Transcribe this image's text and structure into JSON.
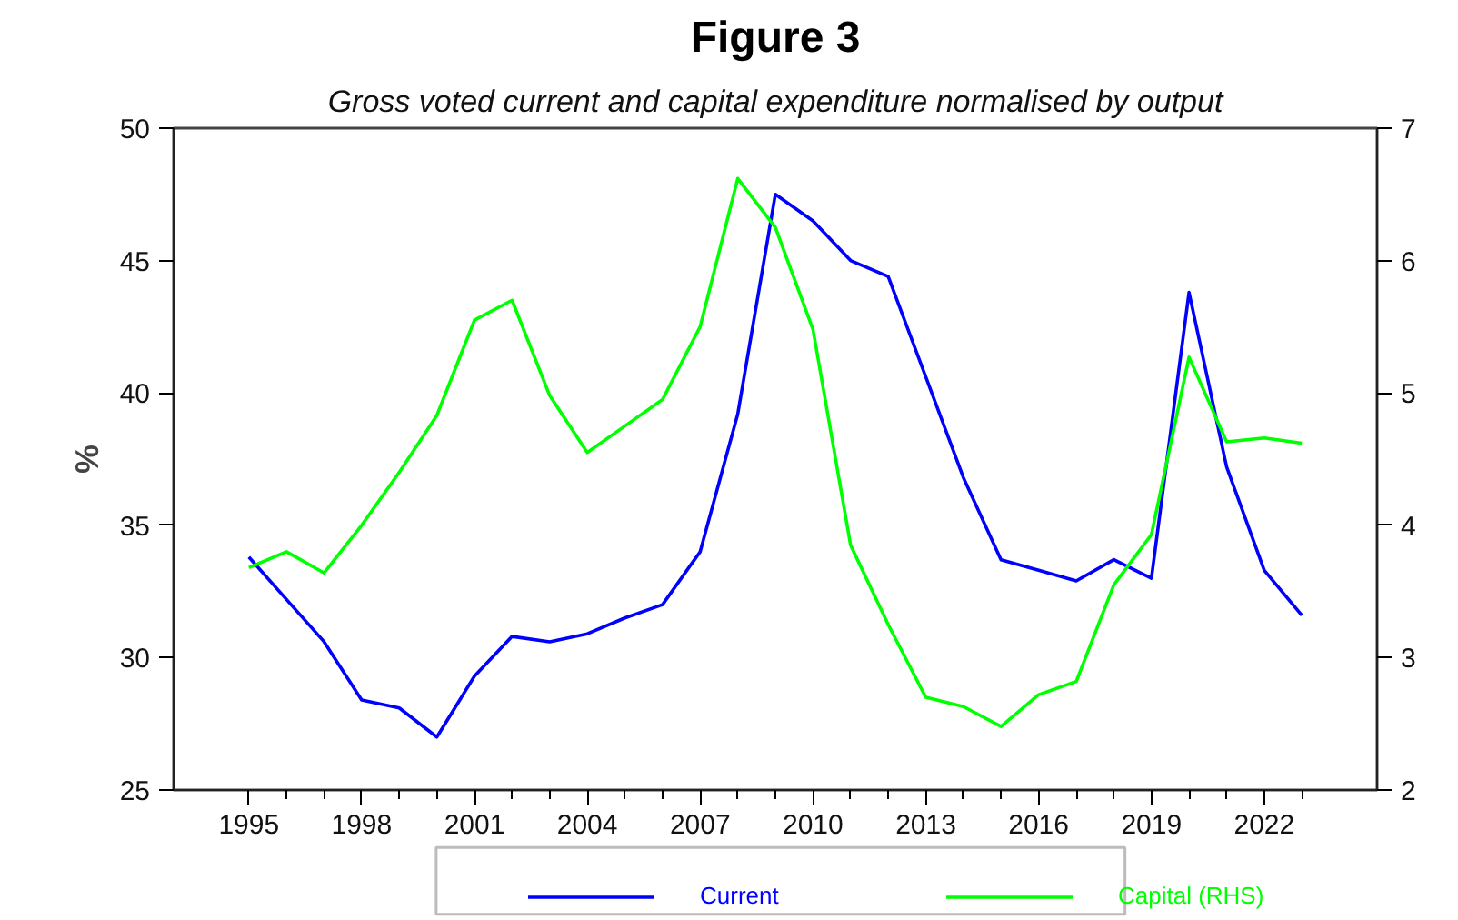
{
  "chart_data": {
    "type": "line",
    "title": "Figure 3",
    "subtitle": "Gross voted current and capital expenditure normalised by output",
    "ylabel": "%",
    "x": [
      1995,
      1996,
      1997,
      1998,
      1999,
      2000,
      2001,
      2002,
      2003,
      2004,
      2005,
      2006,
      2007,
      2008,
      2009,
      2010,
      2011,
      2012,
      2013,
      2014,
      2015,
      2016,
      2017,
      2018,
      2019,
      2020,
      2021,
      2022,
      2023
    ],
    "series": [
      {
        "name": "Current",
        "color": "#0000ff",
        "values": [
          33.8,
          32.2,
          30.6,
          28.4,
          28.1,
          27.0,
          29.3,
          30.8,
          30.6,
          30.9,
          31.5,
          32.0,
          34.0,
          39.2,
          47.5,
          46.5,
          45.0,
          44.4,
          40.6,
          36.8,
          33.7,
          33.3,
          32.9,
          33.7,
          33.0,
          43.8,
          37.2,
          33.3,
          31.6
        ]
      },
      {
        "name": "Capital (RHS)",
        "color": "#00ff00",
        "axis": "y2",
        "values": [
          3.68,
          3.8,
          3.64,
          4.0,
          4.4,
          4.83,
          5.55,
          5.7,
          4.98,
          4.55,
          4.75,
          4.95,
          5.5,
          6.62,
          6.25,
          5.48,
          3.85,
          3.25,
          2.7,
          2.63,
          2.48,
          2.72,
          2.82,
          3.55,
          3.93,
          5.27,
          4.63,
          4.66,
          4.62
        ]
      }
    ],
    "xlim": [
      1993,
      2025
    ],
    "xticks": [
      1995,
      {
        "value": 1996,
        "label": null
      },
      {
        "value": 1997,
        "label": null
      },
      1998,
      {
        "value": 1999,
        "label": null
      },
      {
        "value": 2000,
        "label": null
      },
      2001,
      {
        "value": 2002,
        "label": null
      },
      {
        "value": 2003,
        "label": null
      },
      2004,
      {
        "value": 2005,
        "label": null
      },
      {
        "value": 2006,
        "label": null
      },
      2007,
      {
        "value": 2008,
        "label": null
      },
      {
        "value": 2009,
        "label": null
      },
      2010,
      {
        "value": 2011,
        "label": null
      },
      {
        "value": 2012,
        "label": null
      },
      2013,
      {
        "value": 2014,
        "label": null
      },
      {
        "value": 2015,
        "label": null
      },
      2016,
      {
        "value": 2017,
        "label": null
      },
      {
        "value": 2018,
        "label": null
      },
      2019,
      {
        "value": 2020,
        "label": null
      },
      {
        "value": 2021,
        "label": null
      },
      2022,
      {
        "value": 2023,
        "label": null
      }
    ],
    "ylim": [
      25,
      50
    ],
    "yticks": [
      25,
      30,
      35,
      40,
      45,
      50
    ],
    "y2lim": [
      2,
      7
    ],
    "y2ticks": [
      2,
      3,
      4,
      5,
      6,
      7
    ],
    "grid": false,
    "legend": "bottom",
    "marker": "none",
    "line_style": "solid"
  }
}
